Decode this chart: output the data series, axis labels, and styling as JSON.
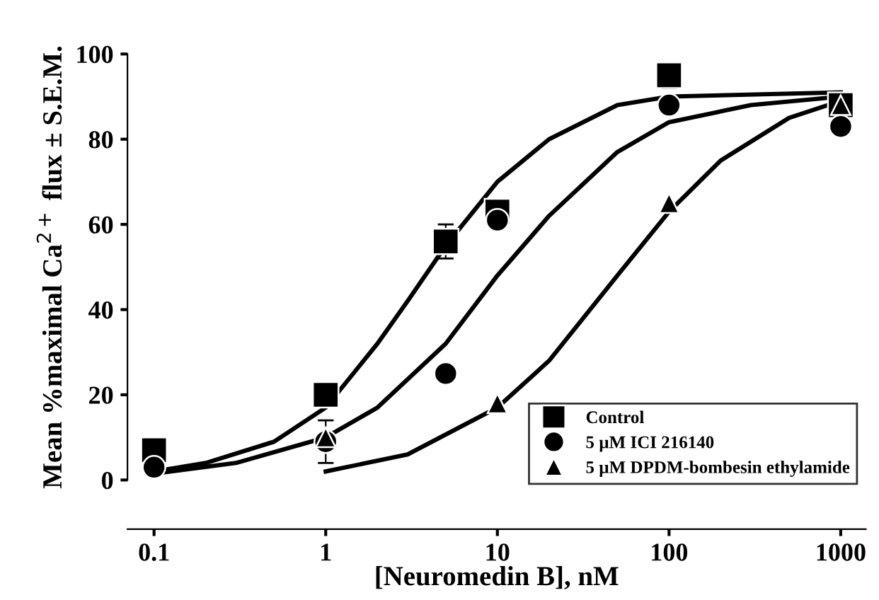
{
  "chart_data": {
    "type": "scatter",
    "xlabel": "[Neuromedin B], nM",
    "ylabel": "Mean %maximal Ca$^{2+}$ flux ± S.E.M.",
    "log": "x",
    "xlim": [
      0.07,
      1400
    ],
    "xticks": [
      0.1,
      1,
      10,
      100,
      1000
    ],
    "ylim": [
      0,
      100
    ],
    "yticks": [
      0,
      20,
      40,
      60,
      80,
      100
    ],
    "grid": false,
    "legend": "bottom right",
    "series": [
      {
        "name": "Control",
        "color": "#000000",
        "marker": "square",
        "x": [
          0.1,
          1,
          5,
          10,
          100,
          1000
        ],
        "values": [
          7,
          20,
          56,
          63,
          95,
          88
        ],
        "errors": [
          null,
          null,
          4,
          null,
          3,
          null
        ]
      },
      {
        "name": "5 µM ICI 216140",
        "color": "#000000",
        "marker": "circle",
        "x": [
          0.1,
          1,
          5,
          10,
          100,
          1000
        ],
        "values": [
          3,
          9,
          25,
          61,
          88,
          83
        ],
        "errors": [
          null,
          5,
          null,
          null,
          null,
          null
        ]
      },
      {
        "name": "5 µM DPDM-bombesin ethylamide",
        "color": "#000000",
        "marker": "triangle",
        "x": [
          1,
          10,
          100,
          1000
        ],
        "values": [
          10,
          18,
          65,
          88
        ]
      },
      {
        "type": "line",
        "color": "#000000",
        "x": [
          0.1,
          0.2,
          0.5,
          1,
          2,
          3,
          5,
          10,
          20,
          50,
          100,
          1000
        ],
        "values": [
          2,
          4,
          9,
          17,
          32,
          42,
          55,
          70,
          80,
          88,
          90,
          91
        ]
      },
      {
        "type": "line",
        "color": "#000000",
        "x": [
          0.1,
          0.3,
          1,
          2,
          5,
          10,
          20,
          50,
          100,
          300,
          1000
        ],
        "values": [
          1.5,
          4,
          10,
          17,
          32,
          48,
          62,
          77,
          84,
          88,
          90
        ]
      },
      {
        "type": "line",
        "color": "#000000",
        "x": [
          1,
          3,
          10,
          20,
          50,
          100,
          200,
          500,
          1000
        ],
        "values": [
          2,
          6,
          17,
          28,
          48,
          63,
          75,
          85,
          89
        ]
      }
    ]
  }
}
